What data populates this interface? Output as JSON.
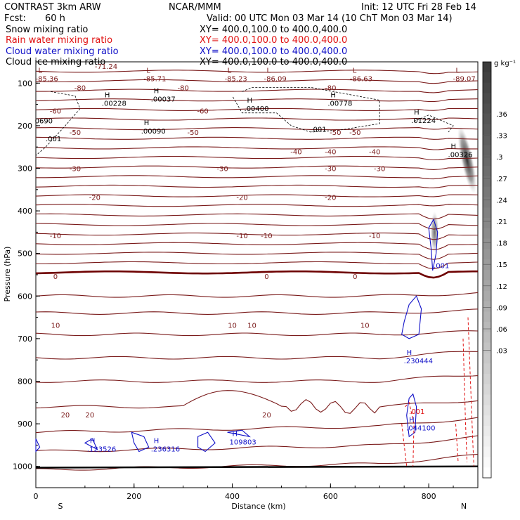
{
  "header": {
    "title": "CONTRAST  3km ARW",
    "center": "NCAR/MMM",
    "init": "Init: 12 UTC Fri 28 Feb 14",
    "fcst_label": "Fcst:",
    "fcst_value": "60 h",
    "valid": "Valid: 00 UTC Mon 03 Mar 14 (10 ChT Mon 03 Mar 14)"
  },
  "legend": [
    {
      "label": "Snow mixing ratio",
      "xy": "XY= 400.0,100.0 to 400.0,400.0",
      "color": "#000000"
    },
    {
      "label": "Rain water mixing ratio",
      "xy": "XY= 400.0,100.0 to 400.0,400.0",
      "color": "#e01010"
    },
    {
      "label": "Cloud water mixing ratio",
      "xy": "XY= 400.0,100.0 to 400.0,400.0",
      "color": "#1010c8"
    },
    {
      "label": "Cloud ice mixing ratio",
      "xy": "XY= 400.0,100.0 to 400.0,400.0",
      "color": "#000000"
    }
  ],
  "chart_data": {
    "type": "contour-cross-section",
    "xlabel": "Distance (km)",
    "ylabel": "Pressure (hPa)",
    "xlim": [
      0,
      900
    ],
    "ylim": [
      1050,
      50
    ],
    "x_ticks": [
      0,
      200,
      400,
      600,
      800
    ],
    "y_ticks": [
      100,
      200,
      300,
      400,
      500,
      600,
      700,
      800,
      900,
      1000
    ],
    "endpoint_left": "S",
    "endpoint_right": "N",
    "colorbar": {
      "unit": "g kg⁻¹",
      "ticks": [
        ".36",
        ".33",
        ".3",
        ".27",
        ".24",
        ".21",
        ".18",
        ".15",
        ".12",
        ".09",
        ".06",
        ".03"
      ]
    },
    "temperature_contours": [
      {
        "value": 0,
        "p": 553,
        "label": "0",
        "labels": [
          [
            40,
            0
          ],
          [
            470,
            0
          ],
          [
            650,
            0
          ]
        ]
      },
      {
        "value": -10,
        "p": 458,
        "labels": [
          [
            40,
            -10
          ],
          [
            420,
            -10
          ],
          [
            470,
            -10
          ],
          [
            690,
            -10
          ]
        ]
      },
      {
        "value": -20,
        "p": 368,
        "labels": [
          [
            120,
            -20
          ],
          [
            420,
            -20
          ],
          [
            600,
            -20
          ]
        ]
      },
      {
        "value": -30,
        "p": 300,
        "labels": [
          [
            80,
            -30
          ],
          [
            380,
            -30
          ],
          [
            600,
            -30
          ],
          [
            700,
            -30
          ]
        ]
      },
      {
        "value": -40,
        "p": 260,
        "labels": [
          [
            530,
            -40
          ],
          [
            600,
            -40
          ],
          [
            690,
            -40
          ]
        ]
      },
      {
        "value": -50,
        "p": 215,
        "labels": [
          [
            80,
            -50
          ],
          [
            320,
            -50
          ],
          [
            610,
            -50
          ],
          [
            650,
            -50
          ]
        ]
      },
      {
        "value": -60,
        "p": 165,
        "labels": [
          [
            40,
            -60
          ],
          [
            340,
            -60
          ]
        ]
      },
      {
        "value": -80,
        "p": 110,
        "labels": [
          [
            90,
            -80
          ],
          [
            300,
            -80
          ],
          [
            600,
            -80
          ]
        ]
      }
    ],
    "lower_contour_labels": [
      [
        400,
        "10"
      ],
      [
        440,
        "10"
      ],
      [
        670,
        "10"
      ],
      [
        40,
        "10"
      ],
      [
        60,
        "20"
      ],
      [
        110,
        "20"
      ],
      [
        470,
        "20"
      ]
    ],
    "extrema": [
      {
        "type": "L",
        "x": 5,
        "p": 82,
        "value": "-85.36"
      },
      {
        "type": "L",
        "x": 225,
        "p": 82,
        "value": "-85.71"
      },
      {
        "type": "L",
        "x": 390,
        "p": 82,
        "value": "-85.23"
      },
      {
        "type": "L",
        "x": 470,
        "p": 82,
        "value": "-86.09"
      },
      {
        "type": "L",
        "x": 645,
        "p": 82,
        "value": "-86.63"
      },
      {
        "type": "L",
        "x": 855,
        "p": 82,
        "value": "-89.07"
      },
      {
        "type": "H",
        "x": 140,
        "p": 140,
        "value": ".00228"
      },
      {
        "type": "H",
        "x": 240,
        "p": 130,
        "value": ".00037"
      },
      {
        "type": "H",
        "x": 430,
        "p": 152,
        "value": ".00400"
      },
      {
        "type": "H",
        "x": 600,
        "p": 140,
        "value": ".00778"
      },
      {
        "type": "H",
        "x": 770,
        "p": 180,
        "value": ".01224"
      },
      {
        "type": "H",
        "x": 220,
        "p": 205,
        "value": ".00090"
      },
      {
        "type": "H",
        "x": 845,
        "p": 260,
        "value": ".00326"
      },
      {
        "type": "H",
        "x": 110,
        "p": 952,
        "value": ".123526"
      },
      {
        "type": "H",
        "x": 240,
        "p": 952,
        "value": ".236316"
      },
      {
        "type": "H",
        "x": 400,
        "p": 935,
        "value": "109803"
      },
      {
        "type": "H",
        "x": 755,
        "p": 745,
        "value": ".230444"
      },
      {
        "type": "H",
        "x": 760,
        "p": 902,
        "value": ".044100"
      }
    ],
    "small_labels": [
      {
        "x": 20,
        "p": 230,
        "value": ".001"
      },
      {
        "x": 560,
        "p": 208,
        "value": ".001"
      },
      {
        "x": 810,
        "p": 528,
        "value": ".001"
      },
      {
        "x": 760,
        "p": 870,
        "value": ".001"
      },
      {
        "x": 120,
        "p": 60,
        "value": "-71.24"
      },
      {
        "x": -2,
        "p": 188,
        "value": "0690"
      }
    ]
  }
}
